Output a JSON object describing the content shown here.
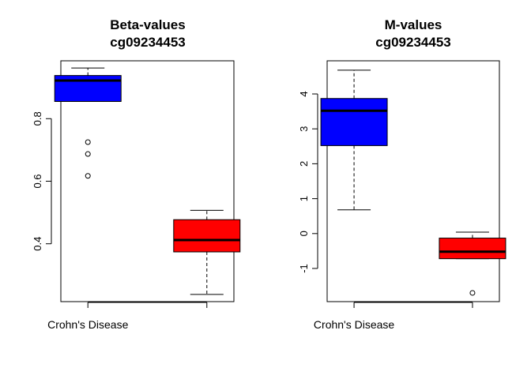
{
  "chart_data": [
    {
      "type": "box",
      "title": [
        "Beta-values",
        "cg09234453"
      ],
      "xlabel": "",
      "ylabel": "",
      "x_tick_labels": [
        "Crohn's Disease",
        ""
      ],
      "ylim": [
        0.215,
        0.985
      ],
      "y_ticks": [
        0.4,
        0.6,
        0.8
      ],
      "y_tick_labels": [
        "0.4",
        "0.6",
        "0.8"
      ],
      "boxes": [
        {
          "color": "#0000ff",
          "whisker_low": 0.855,
          "q1": 0.855,
          "median": 0.922,
          "q3": 0.938,
          "whisker_high": 0.962,
          "outliers": [
            0.725,
            0.687,
            0.617
          ]
        },
        {
          "color": "#ff0000",
          "whisker_low": 0.238,
          "q1": 0.374,
          "median": 0.412,
          "q3": 0.477,
          "whisker_high": 0.507,
          "outliers": []
        }
      ]
    },
    {
      "type": "box",
      "title": [
        "M-values",
        "cg09234453"
      ],
      "xlabel": "",
      "ylabel": "",
      "x_tick_labels": [
        "Crohn's Disease",
        ""
      ],
      "ylim": [
        -1.95,
        4.95
      ],
      "y_ticks": [
        -1,
        0,
        1,
        2,
        3,
        4
      ],
      "y_tick_labels": [
        "-1",
        "0",
        "1",
        "2",
        "3",
        "4"
      ],
      "boxes": [
        {
          "color": "#0000ff",
          "whisker_low": 0.68,
          "q1": 2.52,
          "median": 3.52,
          "q3": 3.87,
          "whisker_high": 4.68,
          "outliers": []
        },
        {
          "color": "#ff0000",
          "whisker_low": -0.72,
          "q1": -0.72,
          "median": -0.52,
          "q3": -0.13,
          "whisker_high": 0.04,
          "outliers": [
            -1.7
          ]
        }
      ]
    }
  ]
}
